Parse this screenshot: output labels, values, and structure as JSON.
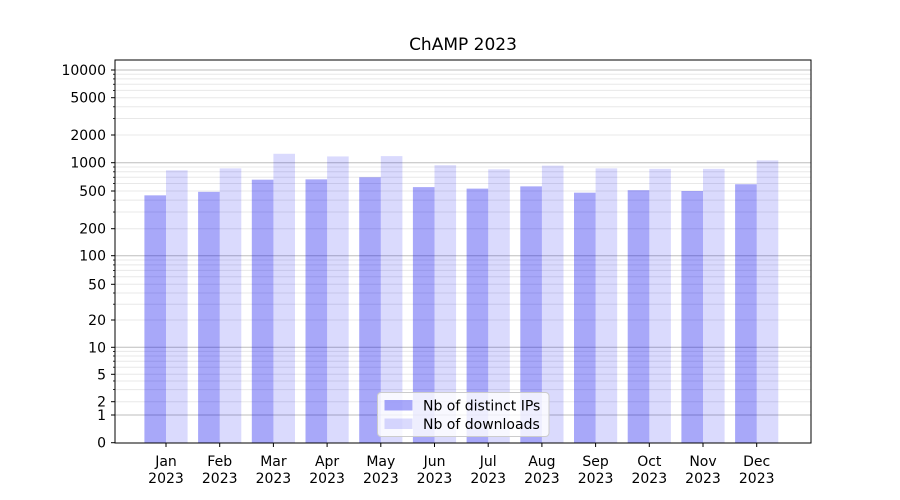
{
  "chart_data": {
    "type": "bar",
    "title": "ChAMP 2023",
    "categories": [
      "Jan",
      "Feb",
      "Mar",
      "Apr",
      "May",
      "Jun",
      "Jul",
      "Aug",
      "Sep",
      "Oct",
      "Nov",
      "Dec"
    ],
    "category_sublabel": "2023",
    "series": [
      {
        "name": "Nb of distinct IPs",
        "color": "#0000ee",
        "alpha": 0.34,
        "values": [
          450,
          490,
          660,
          665,
          700,
          550,
          530,
          560,
          480,
          510,
          500,
          590
        ]
      },
      {
        "name": "Nb of downloads",
        "color": "#0000ee",
        "alpha": 0.145,
        "values": [
          830,
          870,
          1250,
          1170,
          1180,
          940,
          850,
          930,
          870,
          860,
          860,
          1060
        ]
      }
    ],
    "yscale": "symlog",
    "y_ticks": [
      0,
      1,
      2,
      5,
      10,
      20,
      50,
      100,
      200,
      500,
      1000,
      2000,
      5000,
      10000
    ],
    "ylim": [
      0,
      13000
    ],
    "grid": "on",
    "legend_position": "lower center"
  }
}
